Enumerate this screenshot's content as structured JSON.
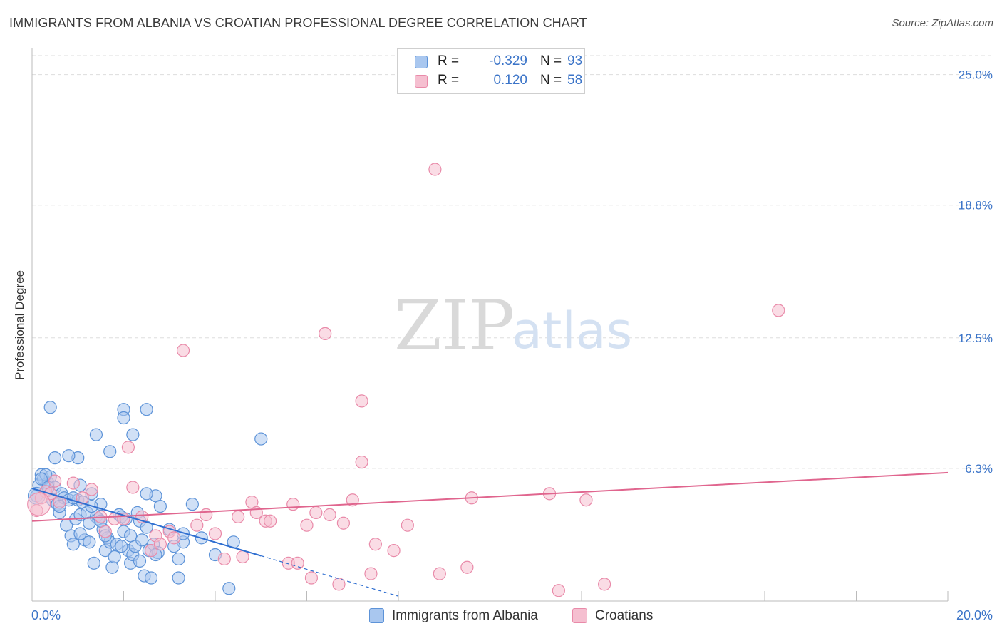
{
  "title": "IMMIGRANTS FROM ALBANIA VS CROATIAN PROFESSIONAL DEGREE CORRELATION CHART",
  "source": "Source: ZipAtlas.com",
  "watermark": {
    "zip": "ZIP",
    "atlas": "atlas"
  },
  "stats": [
    {
      "r_label": "R =",
      "r_value": "-0.329",
      "n_label": "N =",
      "n_value": "93"
    },
    {
      "r_label": "R =",
      "r_value": "0.120",
      "n_label": "N =",
      "n_value": "58"
    }
  ],
  "colors": {
    "albania_fill": "#a9c7ef",
    "albania_stroke": "#5d93d8",
    "albania_line": "#2f6fd1",
    "croatian_fill": "#f5bfd0",
    "croatian_stroke": "#e98aa9",
    "croatian_line": "#e0658e",
    "accent_text": "#3b74c8",
    "grid": "#dddddd"
  },
  "chart_data": {
    "type": "scatter",
    "title": "IMMIGRANTS FROM ALBANIA VS CROATIAN PROFESSIONAL DEGREE CORRELATION CHART",
    "xlabel": "",
    "ylabel": "Professional Degree",
    "xlim": [
      0,
      20
    ],
    "ylim": [
      0,
      25.9
    ],
    "x_tick_labels": [
      {
        "value": 0,
        "label": "0.0%"
      },
      {
        "value": 20,
        "label": "20.0%"
      }
    ],
    "y_tick_labels": [
      {
        "value": 6.3,
        "label": "6.3%"
      },
      {
        "value": 12.5,
        "label": "12.5%"
      },
      {
        "value": 18.8,
        "label": "18.8%"
      },
      {
        "value": 25.0,
        "label": "25.0%"
      }
    ],
    "legend_position": "bottom-center",
    "series": [
      {
        "name": "Immigrants from Albania",
        "r": -0.329,
        "n": 93,
        "trend": {
          "x0": 0,
          "y0": 5.35,
          "x1": 5.0,
          "y1": 2.15,
          "dashed_to_x": 8.0
        },
        "points": [
          [
            0.1,
            5.0
          ],
          [
            0.15,
            5.5
          ],
          [
            0.2,
            6.0
          ],
          [
            0.25,
            5.8
          ],
          [
            0.3,
            5.2
          ],
          [
            0.35,
            5.6
          ],
          [
            0.4,
            5.9
          ],
          [
            0.45,
            4.8
          ],
          [
            0.5,
            5.4
          ],
          [
            0.55,
            4.6
          ],
          [
            0.6,
            4.2
          ],
          [
            0.65,
            5.1
          ],
          [
            0.7,
            4.9
          ],
          [
            0.75,
            3.6
          ],
          [
            0.8,
            4.8
          ],
          [
            0.85,
            3.1
          ],
          [
            0.9,
            2.7
          ],
          [
            0.95,
            3.9
          ],
          [
            1.0,
            4.8
          ],
          [
            1.05,
            4.1
          ],
          [
            1.1,
            4.7
          ],
          [
            1.15,
            2.9
          ],
          [
            1.2,
            4.2
          ],
          [
            1.25,
            2.8
          ],
          [
            1.3,
            5.1
          ],
          [
            1.35,
            1.8
          ],
          [
            1.4,
            4.0
          ],
          [
            1.45,
            3.9
          ],
          [
            1.5,
            4.6
          ],
          [
            1.55,
            3.4
          ],
          [
            1.6,
            2.4
          ],
          [
            1.65,
            3.0
          ],
          [
            1.7,
            2.8
          ],
          [
            1.75,
            1.6
          ],
          [
            1.8,
            2.1
          ],
          [
            1.85,
            2.7
          ],
          [
            1.9,
            4.1
          ],
          [
            1.95,
            4.0
          ],
          [
            2.0,
            3.3
          ],
          [
            2.05,
            3.9
          ],
          [
            2.1,
            2.4
          ],
          [
            2.15,
            1.8
          ],
          [
            2.2,
            2.2
          ],
          [
            2.25,
            2.6
          ],
          [
            2.3,
            4.2
          ],
          [
            2.35,
            3.8
          ],
          [
            2.4,
            2.9
          ],
          [
            2.45,
            1.2
          ],
          [
            2.5,
            3.5
          ],
          [
            2.55,
            2.4
          ],
          [
            2.6,
            1.1
          ],
          [
            2.65,
            2.7
          ],
          [
            2.7,
            5.0
          ],
          [
            2.75,
            2.3
          ],
          [
            2.8,
            4.5
          ],
          [
            3.0,
            3.4
          ],
          [
            3.2,
            2.0
          ],
          [
            3.3,
            2.8
          ],
          [
            3.5,
            4.6
          ],
          [
            3.7,
            3.0
          ],
          [
            2.0,
            9.1
          ],
          [
            0.4,
            9.2
          ],
          [
            1.4,
            7.9
          ],
          [
            1.7,
            7.1
          ],
          [
            2.2,
            7.9
          ],
          [
            2.0,
            8.7
          ],
          [
            2.5,
            9.1
          ],
          [
            1.0,
            6.8
          ],
          [
            0.8,
            6.9
          ],
          [
            0.5,
            6.8
          ],
          [
            0.3,
            6.0
          ],
          [
            0.2,
            5.8
          ],
          [
            0.35,
            5.4
          ],
          [
            0.6,
            4.5
          ],
          [
            0.9,
            4.9
          ],
          [
            1.25,
            3.7
          ],
          [
            1.5,
            3.8
          ],
          [
            1.95,
            2.6
          ],
          [
            2.15,
            3.1
          ],
          [
            2.35,
            1.9
          ],
          [
            2.5,
            5.1
          ],
          [
            3.1,
            2.6
          ],
          [
            3.2,
            1.1
          ],
          [
            3.3,
            3.2
          ],
          [
            2.7,
            2.2
          ],
          [
            1.6,
            3.1
          ],
          [
            1.05,
            3.2
          ],
          [
            1.3,
            4.5
          ],
          [
            1.05,
            5.5
          ],
          [
            5.0,
            7.7
          ],
          [
            4.3,
            0.6
          ],
          [
            4.0,
            2.2
          ],
          [
            4.4,
            2.8
          ]
        ]
      },
      {
        "name": "Croatians",
        "r": 0.12,
        "n": 58,
        "trend": {
          "x0": 0,
          "y0": 3.8,
          "x1": 20,
          "y1": 6.1
        },
        "points": [
          [
            0.1,
            4.3
          ],
          [
            0.3,
            5.2
          ],
          [
            0.5,
            5.7
          ],
          [
            0.6,
            4.7
          ],
          [
            0.9,
            5.6
          ],
          [
            1.1,
            4.9
          ],
          [
            1.3,
            5.3
          ],
          [
            1.5,
            4.0
          ],
          [
            1.6,
            3.3
          ],
          [
            1.8,
            3.9
          ],
          [
            2.2,
            5.4
          ],
          [
            2.1,
            7.3
          ],
          [
            2.4,
            4.0
          ],
          [
            2.6,
            2.4
          ],
          [
            2.7,
            3.1
          ],
          [
            2.8,
            2.7
          ],
          [
            3.0,
            3.3
          ],
          [
            3.1,
            3.0
          ],
          [
            3.3,
            11.9
          ],
          [
            3.6,
            3.6
          ],
          [
            3.8,
            4.1
          ],
          [
            4.0,
            3.2
          ],
          [
            4.2,
            2.0
          ],
          [
            4.5,
            4.0
          ],
          [
            4.6,
            2.1
          ],
          [
            4.8,
            4.7
          ],
          [
            4.9,
            4.2
          ],
          [
            5.1,
            3.8
          ],
          [
            5.2,
            3.8
          ],
          [
            5.6,
            1.8
          ],
          [
            5.7,
            4.6
          ],
          [
            5.8,
            1.8
          ],
          [
            6.0,
            3.6
          ],
          [
            6.1,
            1.1
          ],
          [
            6.2,
            4.2
          ],
          [
            6.4,
            12.7
          ],
          [
            6.5,
            4.1
          ],
          [
            6.7,
            0.8
          ],
          [
            6.8,
            3.7
          ],
          [
            7.0,
            4.8
          ],
          [
            7.2,
            6.6
          ],
          [
            7.4,
            1.3
          ],
          [
            7.5,
            2.7
          ],
          [
            7.9,
            2.4
          ],
          [
            8.2,
            3.6
          ],
          [
            8.8,
            20.5
          ],
          [
            8.9,
            1.3
          ],
          [
            9.5,
            1.6
          ],
          [
            9.6,
            4.9
          ],
          [
            11.3,
            5.1
          ],
          [
            11.5,
            0.5
          ],
          [
            12.1,
            4.8
          ],
          [
            12.5,
            0.8
          ],
          [
            16.3,
            13.8
          ],
          [
            0.2,
            4.9
          ],
          [
            0.4,
            5.1
          ],
          [
            2.0,
            3.9
          ],
          [
            7.2,
            9.5
          ]
        ]
      }
    ]
  },
  "legend": [
    {
      "label": "Immigrants from Albania"
    },
    {
      "label": "Croatians"
    }
  ]
}
